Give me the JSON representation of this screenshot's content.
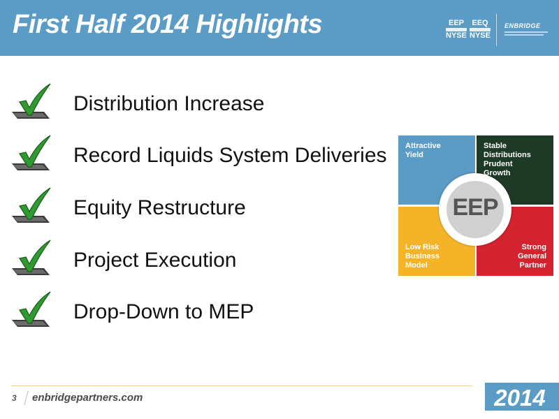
{
  "header": {
    "title": "First Half 2014 Highlights",
    "tickers": [
      {
        "symbol": "EEP",
        "exchange": "NYSE"
      },
      {
        "symbol": "EEQ",
        "exchange": "NYSE"
      }
    ],
    "logo_text": "ENBRIDGE",
    "color": "#5b9cc6"
  },
  "highlights": [
    {
      "label": "Distribution Increase",
      "icon": "checkmark-icon"
    },
    {
      "label": "Record Liquids System Deliveries",
      "icon": "checkmark-icon"
    },
    {
      "label": "Equity Restructure",
      "icon": "checkmark-icon"
    },
    {
      "label": "Project Execution",
      "icon": "checkmark-icon"
    },
    {
      "label": "Drop-Down to MEP",
      "icon": "checkmark-icon"
    }
  ],
  "graphic": {
    "center": "EEP",
    "quadrants": [
      {
        "lines": [
          "Attractive",
          "Yield"
        ],
        "color": "#5b9cc6"
      },
      {
        "lines": [
          "Stable",
          "Distributions",
          "Prudent",
          "Growth"
        ],
        "color": "#1e3a26"
      },
      {
        "lines": [
          "Low Risk",
          "Business",
          "Model"
        ],
        "color": "#f5b428"
      },
      {
        "lines": [
          "Strong",
          "General",
          "Partner"
        ],
        "color": "#d2232f"
      }
    ]
  },
  "footer": {
    "page": "3",
    "site": "enbridgepartners.com",
    "year": "2014"
  }
}
